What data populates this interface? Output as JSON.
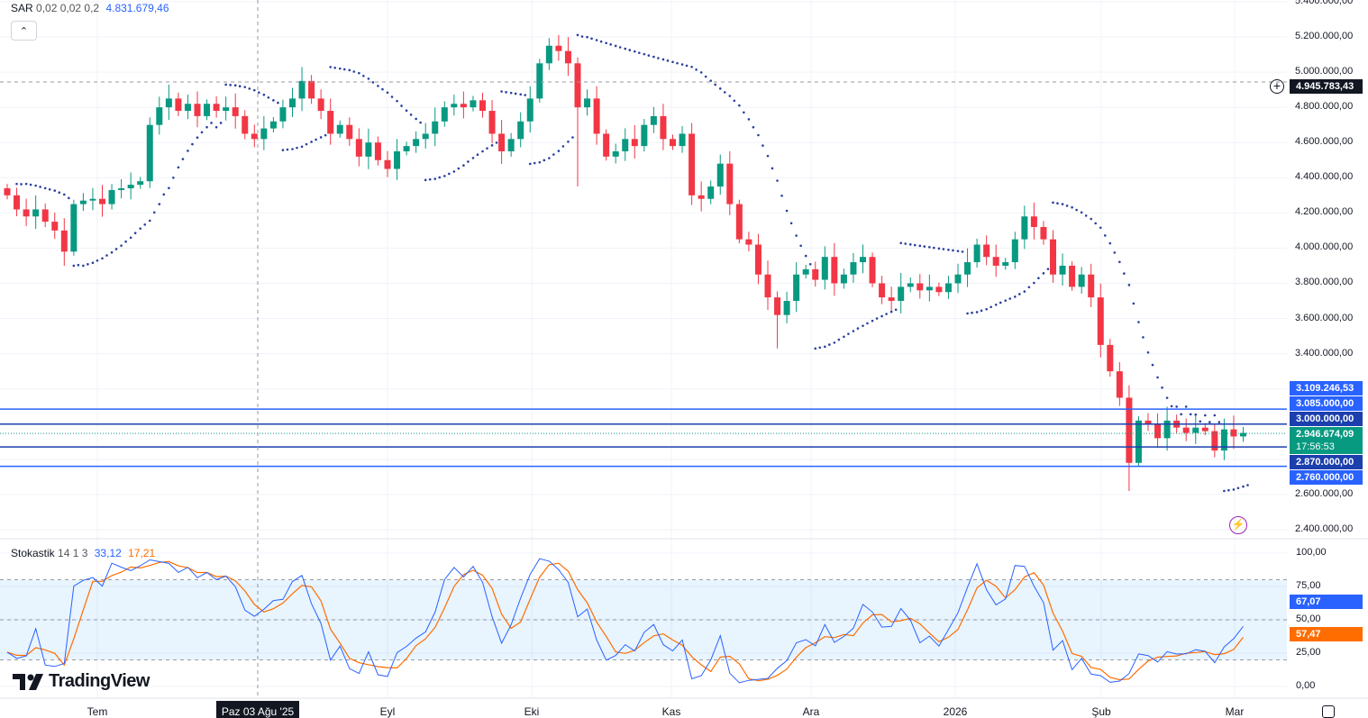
{
  "chart_data": [
    {
      "type": "candlestick",
      "title": "",
      "indicator": {
        "name": "SAR",
        "params": "0,02 0,02 0,2",
        "value": "4.831.679,46"
      },
      "y_axis_ticks": [
        "5.400.000,00",
        "5.200.000,00",
        "5.000.000,00",
        "4.800.000,00",
        "4.600.000,00",
        "4.400.000,00",
        "4.200.000,00",
        "4.000.000,00",
        "3.800.000,00",
        "3.600.000,00",
        "3.400.000,00",
        "2.600.000,00",
        "2.400.000,00"
      ],
      "ylim": [
        2350000,
        5400000
      ],
      "closes_millions": [
        4.3,
        4.22,
        4.18,
        4.22,
        4.15,
        4.1,
        3.98,
        4.25,
        4.27,
        4.28,
        4.25,
        4.33,
        4.34,
        4.36,
        4.38,
        4.7,
        4.8,
        4.85,
        4.78,
        4.82,
        4.75,
        4.82,
        4.78,
        4.8,
        4.75,
        4.65,
        4.62,
        4.68,
        4.72,
        4.8,
        4.85,
        4.95,
        4.85,
        4.78,
        4.65,
        4.7,
        4.62,
        4.52,
        4.6,
        4.5,
        4.45,
        4.55,
        4.58,
        4.62,
        4.65,
        4.72,
        4.8,
        4.82,
        4.8,
        4.84,
        4.78,
        4.65,
        4.55,
        4.62,
        4.72,
        4.85,
        5.05,
        5.15,
        5.12,
        5.05,
        4.8,
        4.85,
        4.65,
        4.52,
        4.55,
        4.62,
        4.58,
        4.7,
        4.75,
        4.62,
        4.58,
        4.65,
        4.3,
        4.28,
        4.35,
        4.48,
        4.25,
        4.05,
        4.02,
        3.85,
        3.72,
        3.62,
        3.7,
        3.85,
        3.88,
        3.82,
        3.95,
        3.8,
        3.85,
        3.92,
        3.95,
        3.8,
        3.72,
        3.7,
        3.78,
        3.8,
        3.76,
        3.78,
        3.75,
        3.8,
        3.85,
        3.92,
        4.02,
        3.95,
        3.9,
        3.92,
        4.05,
        4.18,
        4.12,
        4.05,
        3.85,
        3.9,
        3.78,
        3.85,
        3.72,
        3.45,
        3.3,
        3.15,
        2.78,
        3.02,
        3.0,
        2.92,
        3.02,
        2.98,
        2.95,
        2.98,
        2.96,
        2.85,
        2.97,
        2.93,
        2.95
      ],
      "horizontal_levels": [
        {
          "value": 3085000,
          "label": "3.085.000,00",
          "color": "#2962ff"
        },
        {
          "value": 3000000,
          "label": "3.000.000,00",
          "color": "#1c3fae"
        },
        {
          "value": 2870000,
          "label": "2.870.000,00",
          "color": "#1c3fae"
        },
        {
          "value": 2760000,
          "label": "2.760.000,00",
          "color": "#2962ff"
        }
      ],
      "sar_tag": "3.109.246,53",
      "last_price": {
        "value": 2946674.09,
        "label": "2.946.674,09",
        "countdown": "17:56:53",
        "color": "#089981"
      },
      "crosshair": {
        "price_label": "4.945.783,43",
        "time_label": "Paz 03 Ağu '25"
      },
      "x_axis_ticks": [
        "Tem",
        "Eyl",
        "Eki",
        "Kas",
        "Ara",
        "2026",
        "Şub",
        "Mar"
      ],
      "colors": {
        "up": "#089981",
        "down": "#f23645",
        "sar": "#2a3f9e"
      }
    },
    {
      "type": "line",
      "indicator": {
        "name": "Stokastik",
        "params": "14 1 3",
        "k_value": "33,12",
        "d_value": "17,21"
      },
      "y_axis_ticks": [
        "100,00",
        "75,00",
        "50,00",
        "25,00",
        "0,00"
      ],
      "ylim": [
        0,
        100
      ],
      "bands": {
        "upper": 80,
        "middle": 50,
        "lower": 20
      },
      "last_tags": {
        "k": "67,07",
        "d": "57,47"
      },
      "series": [
        {
          "color": "#2962ff"
        },
        {
          "color": "#ff6d00"
        }
      ]
    }
  ],
  "branding": {
    "logo_text": "TradingView"
  }
}
